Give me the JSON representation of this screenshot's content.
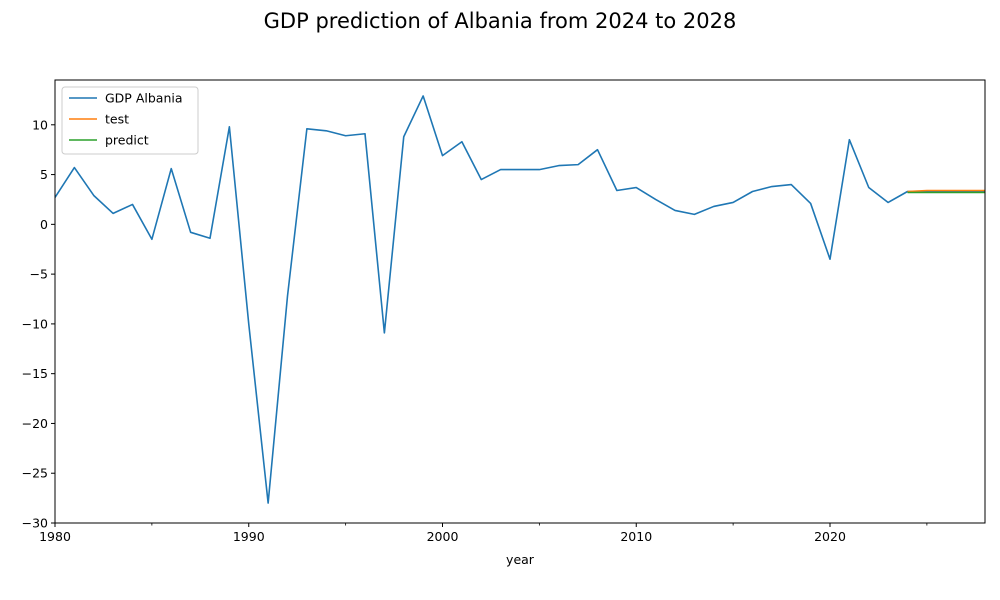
{
  "chart_data": {
    "type": "line",
    "title": "GDP prediction of Albania from 2024 to 2028",
    "xlabel": "year",
    "ylabel": "",
    "xlim": [
      1980,
      2028
    ],
    "ylim": [
      -30,
      14.5
    ],
    "x_ticks": [
      1980,
      1990,
      2000,
      2010,
      2020
    ],
    "x_minor_ticks": [
      1985,
      1995,
      2005,
      2015,
      2025
    ],
    "y_ticks": [
      10,
      5,
      0,
      -5,
      -10,
      -15,
      -20,
      -25,
      -30
    ],
    "grid": false,
    "legend_position": "top-left",
    "series": [
      {
        "name": "GDP Albania",
        "color": "#1f77b4",
        "x": [
          1980,
          1981,
          1982,
          1983,
          1984,
          1985,
          1986,
          1987,
          1988,
          1989,
          1990,
          1991,
          1992,
          1993,
          1994,
          1995,
          1996,
          1997,
          1998,
          1999,
          2000,
          2001,
          2002,
          2003,
          2004,
          2005,
          2006,
          2007,
          2008,
          2009,
          2010,
          2011,
          2012,
          2013,
          2014,
          2015,
          2016,
          2017,
          2018,
          2019,
          2020,
          2021,
          2022,
          2023,
          2024,
          2025,
          2026,
          2027,
          2028
        ],
        "values": [
          2.7,
          5.7,
          2.9,
          1.1,
          2.0,
          -1.5,
          5.6,
          -0.8,
          -1.4,
          9.8,
          -10.0,
          -28.0,
          -7.2,
          9.6,
          9.4,
          8.9,
          9.1,
          -10.9,
          8.8,
          12.9,
          6.9,
          8.3,
          4.5,
          5.5,
          5.5,
          5.5,
          5.9,
          6.0,
          7.5,
          3.4,
          3.7,
          2.5,
          1.4,
          1.0,
          1.8,
          2.2,
          3.3,
          3.8,
          4.0,
          2.1,
          -3.5,
          8.5,
          3.7,
          2.2,
          3.3,
          3.3,
          3.3,
          3.3,
          3.3
        ]
      },
      {
        "name": "test",
        "color": "#ff7f0e",
        "x": [
          2024,
          2025,
          2026,
          2027,
          2028
        ],
        "values": [
          3.3,
          3.4,
          3.4,
          3.4,
          3.4
        ]
      },
      {
        "name": "predict",
        "color": "#2ca02c",
        "x": [
          2024,
          2025,
          2026,
          2027,
          2028
        ],
        "values": [
          3.2,
          3.2,
          3.2,
          3.2,
          3.2
        ]
      }
    ]
  }
}
